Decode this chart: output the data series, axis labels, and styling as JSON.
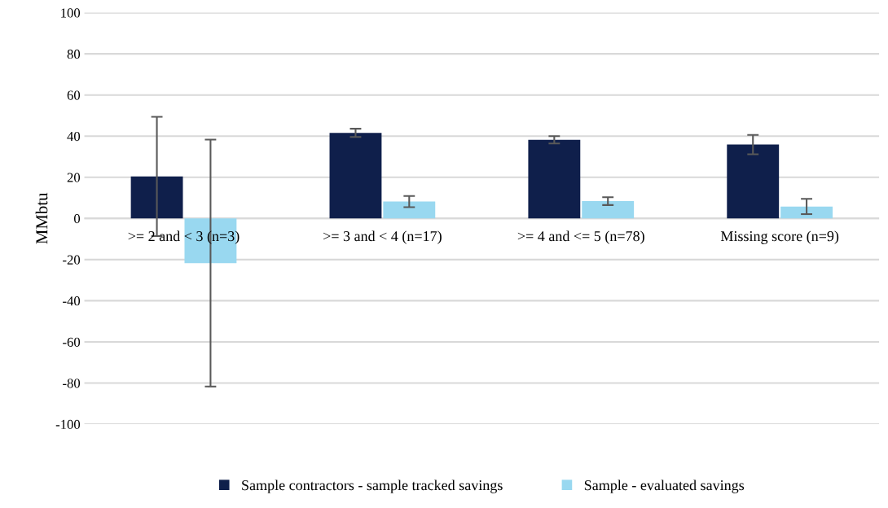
{
  "chart_data": {
    "type": "bar",
    "ylabel": "MMbtu",
    "categories": [
      ">= 2 and < 3 (n=3)",
      ">= 3 and < 4 (n=17)",
      ">= 4 and <= 5 (n=78)",
      "Missing score (n=9)"
    ],
    "series": [
      {
        "name": "Sample contractors - sample tracked savings",
        "color": "#0f1f4b",
        "values": [
          20.4,
          41.6,
          38.2,
          35.9
        ],
        "errors": [
          29,
          2,
          1.8,
          4.7
        ]
      },
      {
        "name": "Sample - evaluated savings",
        "color": "#99d8f0",
        "values": [
          -21.7,
          8.2,
          8.4,
          5.8
        ],
        "errors": [
          60,
          2.7,
          1.9,
          3.7
        ]
      }
    ],
    "ylim": [
      -100,
      100
    ],
    "yticks": [
      -100,
      -80,
      -60,
      -40,
      -20,
      0,
      20,
      40,
      60,
      80,
      100
    ],
    "grid": "y",
    "legend": "bottom"
  }
}
